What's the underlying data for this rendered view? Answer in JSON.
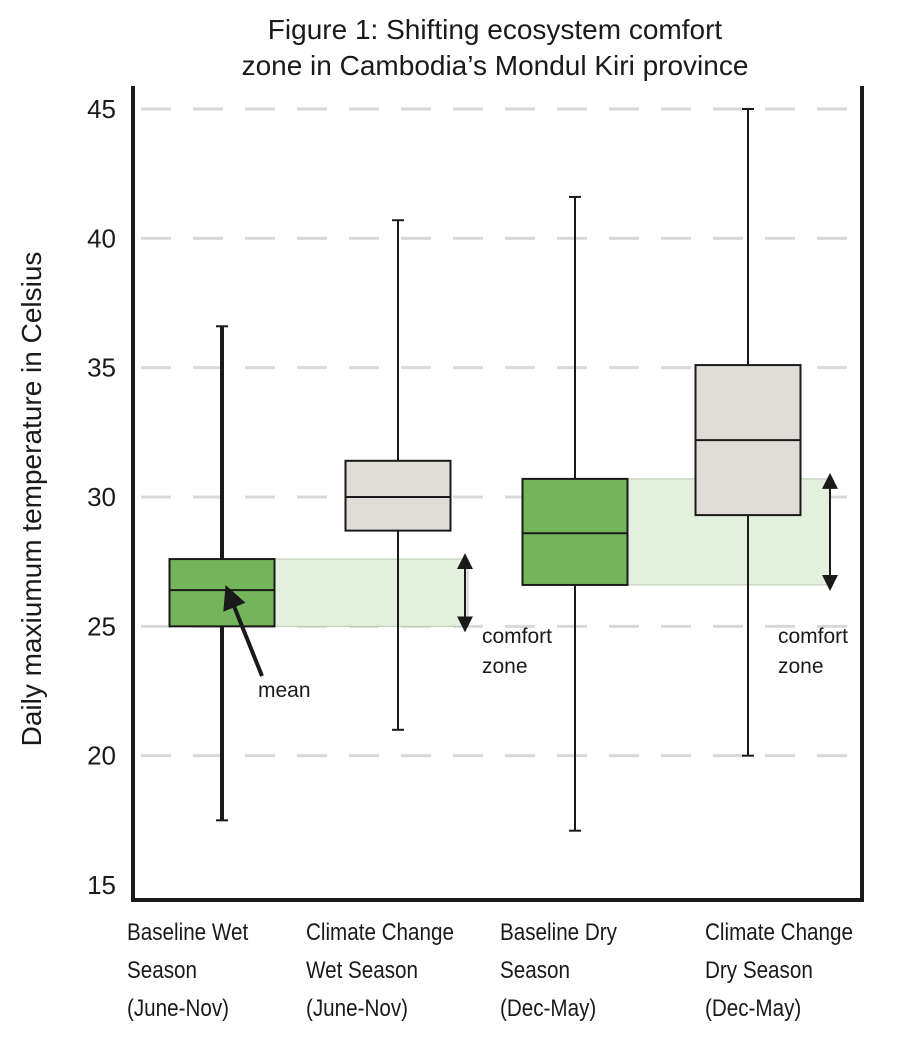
{
  "chart_data": {
    "type": "box",
    "title_lines": [
      "Figure 1: Shifting ecosystem comfort",
      "zone in Cambodia’s Mondul Kiri province"
    ],
    "ylabel": "Daily maxiumum temperature in Celsius",
    "xlabel": "",
    "ylim": [
      15,
      45
    ],
    "yticks": [
      15,
      20,
      25,
      30,
      35,
      40,
      45
    ],
    "grid": "dashed horizontal",
    "categories": [
      {
        "lines": [
          "Baseline Wet",
          "Season",
          "(June-Nov)"
        ]
      },
      {
        "lines": [
          "Climate Change",
          "Wet Season",
          "(June-Nov)"
        ]
      },
      {
        "lines": [
          "Baseline Dry",
          "Season",
          "(Dec-May)"
        ]
      },
      {
        "lines": [
          "Climate Change",
          "Dry Season",
          "(Dec-May)"
        ]
      }
    ],
    "boxes": [
      {
        "min": 17.5,
        "q1": 25.0,
        "median": 26.4,
        "q3": 27.6,
        "max": 36.6,
        "color": "#74b55c"
      },
      {
        "min": 21.0,
        "q1": 28.7,
        "median": 30.0,
        "q3": 31.4,
        "max": 40.7,
        "color": "#e0dcd7"
      },
      {
        "min": 17.1,
        "q1": 26.6,
        "median": 28.6,
        "q3": 30.7,
        "max": 41.6,
        "color": "#74b55c"
      },
      {
        "min": 20.0,
        "q1": 29.3,
        "median": 32.2,
        "q3": 35.1,
        "max": 45.0,
        "color": "#e0dcd7"
      }
    ],
    "comfort_zones": [
      {
        "from_box": 0,
        "low": 25.0,
        "high": 27.6,
        "label_lines": [
          "comfort",
          "zone"
        ]
      },
      {
        "from_box": 2,
        "low": 26.6,
        "high": 30.7,
        "label_lines": [
          "comfort",
          "zone"
        ]
      }
    ],
    "mean_annotation": {
      "box": 0,
      "label": "mean"
    },
    "colors": {
      "zone_fill": "#e3f0dd",
      "grid": "#d9d9d9",
      "axis": "#1a1a1a"
    }
  }
}
